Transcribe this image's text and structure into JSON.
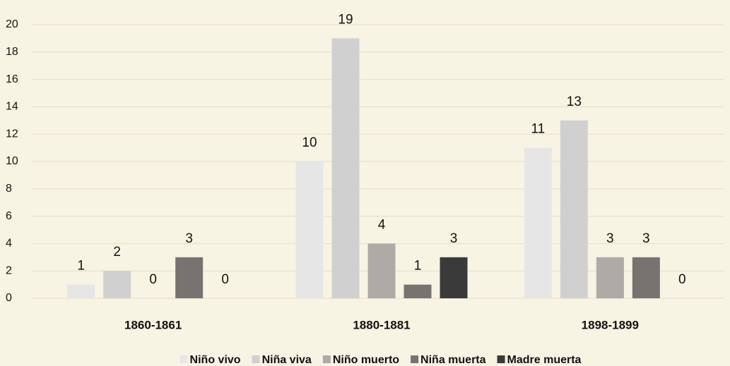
{
  "chart_data": {
    "type": "bar",
    "categories": [
      "1860-1861",
      "1880-1881",
      "1898-1899"
    ],
    "series": [
      {
        "name": "Niño vivo",
        "color": "#e6e6e6",
        "values": [
          1,
          10,
          11
        ]
      },
      {
        "name": "Niña viva",
        "color": "#d1d0d1",
        "values": [
          2,
          19,
          13
        ]
      },
      {
        "name": "Niño muerto",
        "color": "#aeaaa6",
        "values": [
          0,
          4,
          3
        ]
      },
      {
        "name": "Niña muerta",
        "color": "#777371",
        "values": [
          3,
          1,
          3
        ]
      },
      {
        "name": "Madre muerta",
        "color": "#3a3a3a",
        "values": [
          0,
          3,
          0
        ]
      }
    ],
    "ylim": [
      0,
      20
    ],
    "yticks": [
      0,
      2,
      4,
      6,
      8,
      10,
      12,
      14,
      16,
      18,
      20
    ],
    "grid": true,
    "legend": "bottom"
  }
}
